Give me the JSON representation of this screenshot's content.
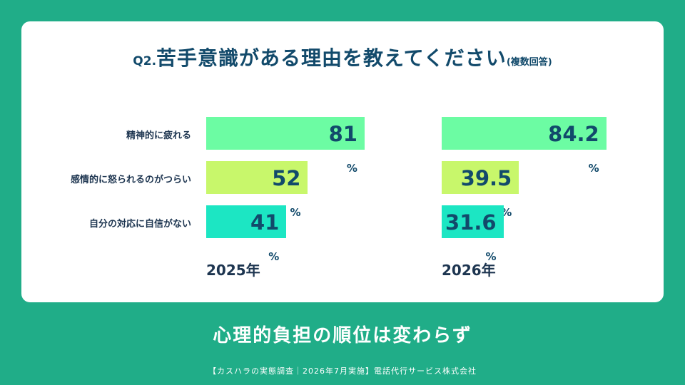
{
  "title": {
    "prefix": "Q2.",
    "main": "苦手意識がある理由を教えてください",
    "note": "(複数回答)"
  },
  "subtitle": "心理的負担の順位は変わらず",
  "footer": "【カスハラの実態調査｜2026年7月実施】電話代行サービス株式会社",
  "colors": {
    "background": "#20ad88",
    "bar_1": "#6cfca3",
    "bar_2": "#c8f76b",
    "bar_3": "#1ce6c3",
    "text": "#124a6b"
  },
  "chart_data": {
    "type": "bar",
    "orientation": "horizontal",
    "categories": [
      "精神的に疲れる",
      "感情的に怒られるのがつらい",
      "自分の対応に自信がない"
    ],
    "unit": "%",
    "xlim": [
      0,
      100
    ],
    "series": [
      {
        "name": "2025年",
        "values": [
          81,
          52,
          41
        ],
        "labels": [
          "81",
          "52",
          "41"
        ]
      },
      {
        "name": "2026年",
        "values": [
          84.2,
          39.5,
          31.6
        ],
        "labels": [
          "84.2",
          "39.5",
          "31.6"
        ]
      }
    ]
  }
}
